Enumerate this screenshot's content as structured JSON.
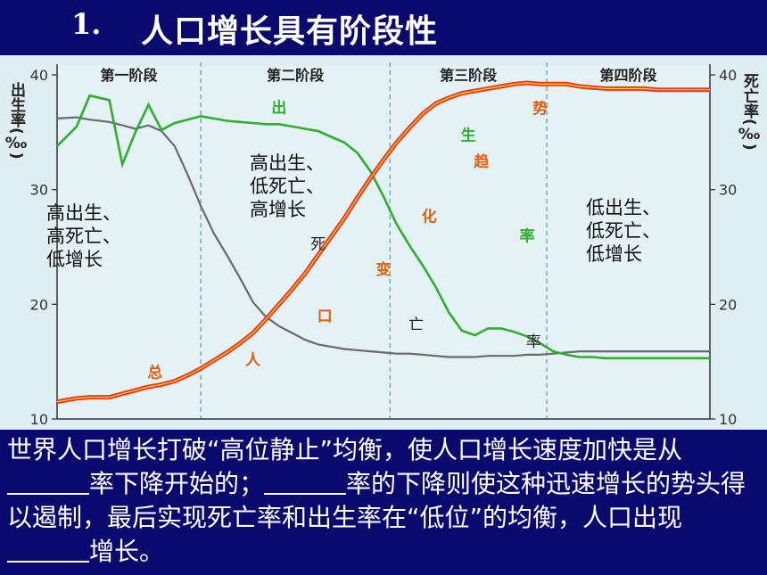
{
  "title": {
    "number": "1.",
    "text": "人口增长具有阶段性"
  },
  "colors": {
    "background": "#0a0a6e",
    "chart_bg": "#dfeef2",
    "birth": "#2fae2f",
    "death": "#6a6a6a",
    "total": "#e83a1a",
    "total_core": "#ffd23a",
    "label_orange": "#e06010"
  },
  "chart_data": {
    "type": "line",
    "stages": [
      "第一阶段",
      "第二阶段",
      "第三阶段",
      "第四阶段"
    ],
    "left_axis_label": "出生率(‰)",
    "right_axis_label": "死亡率(‰)",
    "ylim": [
      10,
      40
    ],
    "yticks": [
      10,
      20,
      30,
      40
    ],
    "x": [
      0,
      3,
      5,
      8,
      10,
      12,
      14,
      16,
      18,
      20,
      22,
      24,
      26,
      28,
      30,
      32,
      34,
      36,
      38,
      40,
      42,
      44,
      46,
      48,
      50,
      52,
      54,
      56,
      58,
      60,
      62,
      64,
      66,
      68,
      70,
      72,
      74,
      76,
      78,
      80,
      82,
      84,
      86,
      88,
      90,
      92,
      94,
      96,
      98,
      100
    ],
    "series": [
      {
        "name": "出生率",
        "label_chars": [
          "出",
          "生",
          "率"
        ],
        "values": [
          33.8,
          35.5,
          38.2,
          37.8,
          32.2,
          35.0,
          37.4,
          35.2,
          35.8,
          36.1,
          36.4,
          36.2,
          36.0,
          35.9,
          35.8,
          35.7,
          35.7,
          35.5,
          35.3,
          35.1,
          34.6,
          34.1,
          33.2,
          31.6,
          29.4,
          27.0,
          25.1,
          23.4,
          21.5,
          19.3,
          17.7,
          17.3,
          17.9,
          17.9,
          17.6,
          17.2,
          16.6,
          15.9,
          15.6,
          15.4,
          15.4,
          15.3,
          15.3,
          15.3,
          15.3,
          15.3,
          15.3,
          15.3,
          15.3,
          15.3
        ]
      },
      {
        "name": "死亡率",
        "label_chars": [
          "死",
          "亡",
          "率"
        ],
        "values": [
          36.2,
          36.3,
          36.1,
          35.9,
          35.6,
          35.3,
          35.6,
          35.1,
          33.8,
          31.3,
          28.6,
          26.2,
          24.3,
          22.3,
          20.2,
          18.9,
          18.1,
          17.5,
          16.9,
          16.5,
          16.3,
          16.1,
          16.0,
          15.9,
          15.8,
          15.7,
          15.7,
          15.6,
          15.5,
          15.4,
          15.4,
          15.4,
          15.5,
          15.5,
          15.5,
          15.6,
          15.6,
          15.7,
          15.8,
          15.9,
          15.9,
          15.9,
          15.9,
          15.9,
          15.9,
          15.9,
          15.9,
          15.9,
          15.9,
          15.9
        ]
      },
      {
        "name": "总人口变化趋势",
        "label_chars": [
          "总",
          "人",
          "口",
          "变",
          "化",
          "趋",
          "势"
        ],
        "values": [
          11.5,
          11.8,
          11.9,
          11.9,
          12.2,
          12.5,
          12.8,
          13.0,
          13.3,
          13.8,
          14.4,
          15.1,
          15.8,
          16.6,
          17.5,
          18.7,
          20.0,
          21.3,
          22.7,
          24.3,
          25.9,
          27.5,
          29.3,
          31.0,
          32.6,
          34.1,
          35.4,
          36.6,
          37.5,
          38.0,
          38.4,
          38.6,
          38.8,
          39.0,
          39.2,
          39.3,
          39.2,
          39.2,
          39.2,
          39.0,
          38.9,
          38.8,
          38.8,
          38.8,
          38.8,
          38.7,
          38.7,
          38.7,
          38.7,
          38.7
        ]
      }
    ],
    "annotations": [
      {
        "stage": 1,
        "lines": [
          "高出生、",
          "高死亡、",
          "低增长"
        ]
      },
      {
        "stage": 2,
        "lines": [
          "高出生、",
          "低死亡、",
          "高增长"
        ]
      },
      {
        "stage": 4,
        "lines": [
          "低出生、",
          "低死亡、",
          "低增长"
        ]
      }
    ]
  },
  "bottom_text": {
    "part1": "世界人口增长打破“高位静止”均衡，使人口增长速度加快是从",
    "part2": "率下降开始的；",
    "part3": "率的下降则使这种迅速增长的势头得以遏制，最后实现死亡率和出生率在“低位”的均衡，人口出现",
    "part4": "增长。"
  }
}
